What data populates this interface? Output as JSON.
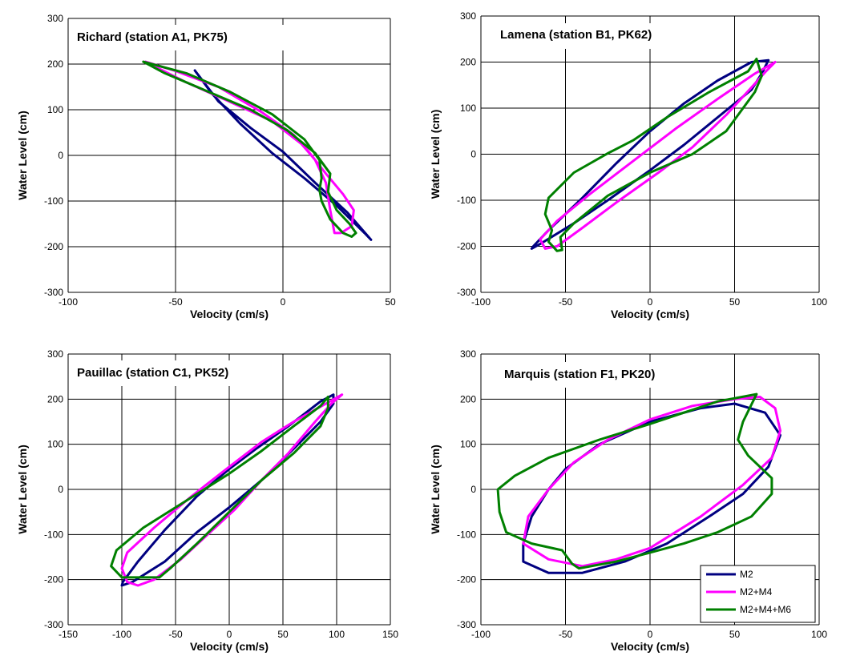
{
  "colors": {
    "M2": "#000080",
    "M2+M4": "#ff00ff",
    "M2+M4+M6": "#008000",
    "grid": "#000000"
  },
  "legend": {
    "placement": "bottom-right of Marquis panel",
    "entries": [
      "M2",
      "M2+M4",
      "M2+M4+M6"
    ]
  },
  "chart_data": [
    {
      "type": "line",
      "title": "Richard (station A1, PK75)",
      "xlabel": "Velocity (cm/s)",
      "ylabel": "Water Level (cm)",
      "xlim": [
        -100,
        50
      ],
      "ylim": [
        -300,
        300
      ],
      "xticks": [
        -100,
        -50,
        0,
        50
      ],
      "yticks": [
        -300,
        -200,
        -100,
        0,
        100,
        200,
        300
      ],
      "grid": true,
      "series": [
        {
          "name": "M2",
          "points": [
            [
              -41,
              186
            ],
            [
              -30,
              118
            ],
            [
              -15,
              60
            ],
            [
              0,
              8
            ],
            [
              15,
              -60
            ],
            [
              30,
              -125
            ],
            [
              41,
              -185
            ],
            [
              38,
              -170
            ],
            [
              25,
              -110
            ],
            [
              10,
              -50
            ],
            [
              -5,
              5
            ],
            [
              -20,
              70
            ],
            [
              -33,
              135
            ],
            [
              -41,
              186
            ]
          ]
        },
        {
          "name": "M2+M4",
          "points": [
            [
              -64,
              205
            ],
            [
              -45,
              160
            ],
            [
              -25,
              118
            ],
            [
              -5,
              75
            ],
            [
              10,
              20
            ],
            [
              20,
              -40
            ],
            [
              28,
              -85
            ],
            [
              33,
              -120
            ],
            [
              32,
              -155
            ],
            [
              27,
              -170
            ],
            [
              24,
              -170
            ],
            [
              22,
              -120
            ],
            [
              20,
              -60
            ],
            [
              15,
              -10
            ],
            [
              5,
              45
            ],
            [
              -10,
              95
            ],
            [
              -30,
              150
            ],
            [
              -50,
              185
            ],
            [
              -64,
              205
            ]
          ]
        },
        {
          "name": "M2+M4+M6",
          "points": [
            [
              -65,
              205
            ],
            [
              -45,
              180
            ],
            [
              -25,
              140
            ],
            [
              -5,
              90
            ],
            [
              10,
              35
            ],
            [
              17,
              -10
            ],
            [
              18,
              -50
            ],
            [
              17,
              -75
            ],
            [
              18,
              -100
            ],
            [
              22,
              -140
            ],
            [
              28,
              -170
            ],
            [
              32,
              -178
            ],
            [
              34,
              -170
            ],
            [
              31,
              -150
            ],
            [
              25,
              -120
            ],
            [
              21,
              -80
            ],
            [
              22,
              -40
            ],
            [
              15,
              5
            ],
            [
              2,
              55
            ],
            [
              -15,
              100
            ],
            [
              -35,
              140
            ],
            [
              -55,
              180
            ],
            [
              -65,
              205
            ]
          ]
        }
      ]
    },
    {
      "type": "line",
      "title": "Lamena (station B1, PK62)",
      "xlabel": "Velocity (cm/s)",
      "ylabel": "Water Level (cm)",
      "xlim": [
        -100,
        100
      ],
      "ylim": [
        -300,
        300
      ],
      "xticks": [
        -100,
        -50,
        0,
        50,
        100
      ],
      "yticks": [
        -300,
        -200,
        -100,
        0,
        100,
        200,
        300
      ],
      "grid": true,
      "series": [
        {
          "name": "M2",
          "points": [
            [
              70,
              204
            ],
            [
              60,
              200
            ],
            [
              40,
              160
            ],
            [
              20,
              110
            ],
            [
              0,
              50
            ],
            [
              -20,
              -20
            ],
            [
              -40,
              -95
            ],
            [
              -60,
              -165
            ],
            [
              -69,
              -200
            ],
            [
              -70,
              -205
            ],
            [
              -65,
              -195
            ],
            [
              -45,
              -150
            ],
            [
              -25,
              -100
            ],
            [
              0,
              -35
            ],
            [
              20,
              20
            ],
            [
              40,
              80
            ],
            [
              60,
              140
            ],
            [
              66,
              175
            ],
            [
              70,
              204
            ]
          ]
        },
        {
          "name": "M2+M4",
          "points": [
            [
              74,
              200
            ],
            [
              62,
              175
            ],
            [
              40,
              120
            ],
            [
              15,
              55
            ],
            [
              -10,
              -15
            ],
            [
              -35,
              -85
            ],
            [
              -55,
              -145
            ],
            [
              -65,
              -185
            ],
            [
              -62,
              -205
            ],
            [
              -55,
              -200
            ],
            [
              -40,
              -160
            ],
            [
              -20,
              -105
            ],
            [
              5,
              -40
            ],
            [
              25,
              15
            ],
            [
              45,
              85
            ],
            [
              60,
              145
            ],
            [
              68,
              178
            ],
            [
              74,
              200
            ]
          ]
        },
        {
          "name": "M2+M4+M6",
          "points": [
            [
              63,
              207
            ],
            [
              58,
              180
            ],
            [
              35,
              135
            ],
            [
              10,
              80
            ],
            [
              -10,
              30
            ],
            [
              -25,
              2
            ],
            [
              -45,
              -40
            ],
            [
              -60,
              -95
            ],
            [
              -62,
              -130
            ],
            [
              -58,
              -165
            ],
            [
              -60,
              -190
            ],
            [
              -55,
              -210
            ],
            [
              -52,
              -208
            ],
            [
              -53,
              -180
            ],
            [
              -45,
              -150
            ],
            [
              -25,
              -90
            ],
            [
              0,
              -40
            ],
            [
              25,
              0
            ],
            [
              45,
              50
            ],
            [
              62,
              135
            ],
            [
              66,
              170
            ],
            [
              63,
              207
            ]
          ]
        }
      ]
    },
    {
      "type": "line",
      "title": "Pauillac (station C1, PK52)",
      "xlabel": "Velocity (cm/s)",
      "ylabel": "Water Level (cm)",
      "xlim": [
        -150,
        150
      ],
      "ylim": [
        -300,
        300
      ],
      "xticks": [
        -150,
        -100,
        -50,
        0,
        50,
        100,
        150
      ],
      "yticks": [
        -300,
        -200,
        -100,
        0,
        100,
        200,
        300
      ],
      "grid": true,
      "series": [
        {
          "name": "M2",
          "points": [
            [
              97,
              210
            ],
            [
              85,
              195
            ],
            [
              55,
              140
            ],
            [
              25,
              90
            ],
            [
              0,
              45
            ],
            [
              -30,
              -15
            ],
            [
              -60,
              -90
            ],
            [
              -85,
              -160
            ],
            [
              -99,
              -205
            ],
            [
              -100,
              -213
            ],
            [
              -90,
              -205
            ],
            [
              -60,
              -160
            ],
            [
              -30,
              -95
            ],
            [
              0,
              -40
            ],
            [
              30,
              20
            ],
            [
              60,
              90
            ],
            [
              85,
              150
            ],
            [
              97,
              190
            ],
            [
              97,
              210
            ]
          ]
        },
        {
          "name": "M2+M4",
          "points": [
            [
              105,
              210
            ],
            [
              90,
              190
            ],
            [
              60,
              150
            ],
            [
              30,
              105
            ],
            [
              0,
              50
            ],
            [
              -35,
              -15
            ],
            [
              -70,
              -85
            ],
            [
              -95,
              -140
            ],
            [
              -100,
              -175
            ],
            [
              -95,
              -205
            ],
            [
              -85,
              -213
            ],
            [
              -70,
              -200
            ],
            [
              -45,
              -155
            ],
            [
              -20,
              -100
            ],
            [
              5,
              -45
            ],
            [
              30,
              20
            ],
            [
              55,
              80
            ],
            [
              80,
              150
            ],
            [
              95,
              190
            ],
            [
              105,
              210
            ]
          ]
        },
        {
          "name": "M2+M4+M6",
          "points": [
            [
              92,
              205
            ],
            [
              85,
              185
            ],
            [
              60,
              140
            ],
            [
              30,
              85
            ],
            [
              0,
              35
            ],
            [
              -40,
              -25
            ],
            [
              -80,
              -85
            ],
            [
              -105,
              -135
            ],
            [
              -110,
              -170
            ],
            [
              -100,
              -195
            ],
            [
              -85,
              -195
            ],
            [
              -65,
              -195
            ],
            [
              -55,
              -175
            ],
            [
              -30,
              -120
            ],
            [
              0,
              -50
            ],
            [
              30,
              20
            ],
            [
              60,
              80
            ],
            [
              85,
              140
            ],
            [
              92,
              180
            ],
            [
              92,
              205
            ]
          ]
        }
      ]
    },
    {
      "type": "line",
      "title": "Marquis (station F1, PK20)",
      "xlabel": "Velocity (cm/s)",
      "ylabel": "Water Level (cm)",
      "xlim": [
        -100,
        100
      ],
      "ylim": [
        -300,
        300
      ],
      "xticks": [
        -100,
        -50,
        0,
        50,
        100
      ],
      "yticks": [
        -300,
        -200,
        -100,
        0,
        100,
        200,
        300
      ],
      "grid": true,
      "series": [
        {
          "name": "M2",
          "points": [
            [
              -50,
              45
            ],
            [
              -30,
              100
            ],
            [
              0,
              150
            ],
            [
              30,
              180
            ],
            [
              50,
              190
            ],
            [
              68,
              170
            ],
            [
              77,
              120
            ],
            [
              70,
              50
            ],
            [
              55,
              -10
            ],
            [
              35,
              -60
            ],
            [
              10,
              -120
            ],
            [
              -15,
              -160
            ],
            [
              -40,
              -185
            ],
            [
              -60,
              -185
            ],
            [
              -75,
              -160
            ],
            [
              -75,
              -120
            ],
            [
              -70,
              -60
            ],
            [
              -60,
              0
            ],
            [
              -50,
              45
            ]
          ]
        },
        {
          "name": "M2+M4",
          "points": [
            [
              -45,
              60
            ],
            [
              -25,
              110
            ],
            [
              0,
              155
            ],
            [
              25,
              185
            ],
            [
              50,
              200
            ],
            [
              65,
              205
            ],
            [
              74,
              180
            ],
            [
              77,
              130
            ],
            [
              72,
              70
            ],
            [
              55,
              10
            ],
            [
              30,
              -60
            ],
            [
              0,
              -130
            ],
            [
              -20,
              -155
            ],
            [
              -40,
              -170
            ],
            [
              -60,
              -155
            ],
            [
              -75,
              -120
            ],
            [
              -72,
              -60
            ],
            [
              -60,
              0
            ],
            [
              -45,
              60
            ]
          ]
        },
        {
          "name": "M2+M4+M6",
          "points": [
            [
              63,
              211
            ],
            [
              40,
              195
            ],
            [
              20,
              170
            ],
            [
              0,
              145
            ],
            [
              -30,
              110
            ],
            [
              -60,
              70
            ],
            [
              -80,
              30
            ],
            [
              -90,
              0
            ],
            [
              -89,
              -50
            ],
            [
              -85,
              -95
            ],
            [
              -70,
              -120
            ],
            [
              -52,
              -135
            ],
            [
              -46,
              -165
            ],
            [
              -42,
              -175
            ],
            [
              -20,
              -160
            ],
            [
              0,
              -140
            ],
            [
              20,
              -120
            ],
            [
              40,
              -95
            ],
            [
              60,
              -60
            ],
            [
              72,
              -10
            ],
            [
              72,
              25
            ],
            [
              58,
              75
            ],
            [
              52,
              110
            ],
            [
              55,
              150
            ],
            [
              63,
              211
            ]
          ]
        }
      ]
    }
  ]
}
